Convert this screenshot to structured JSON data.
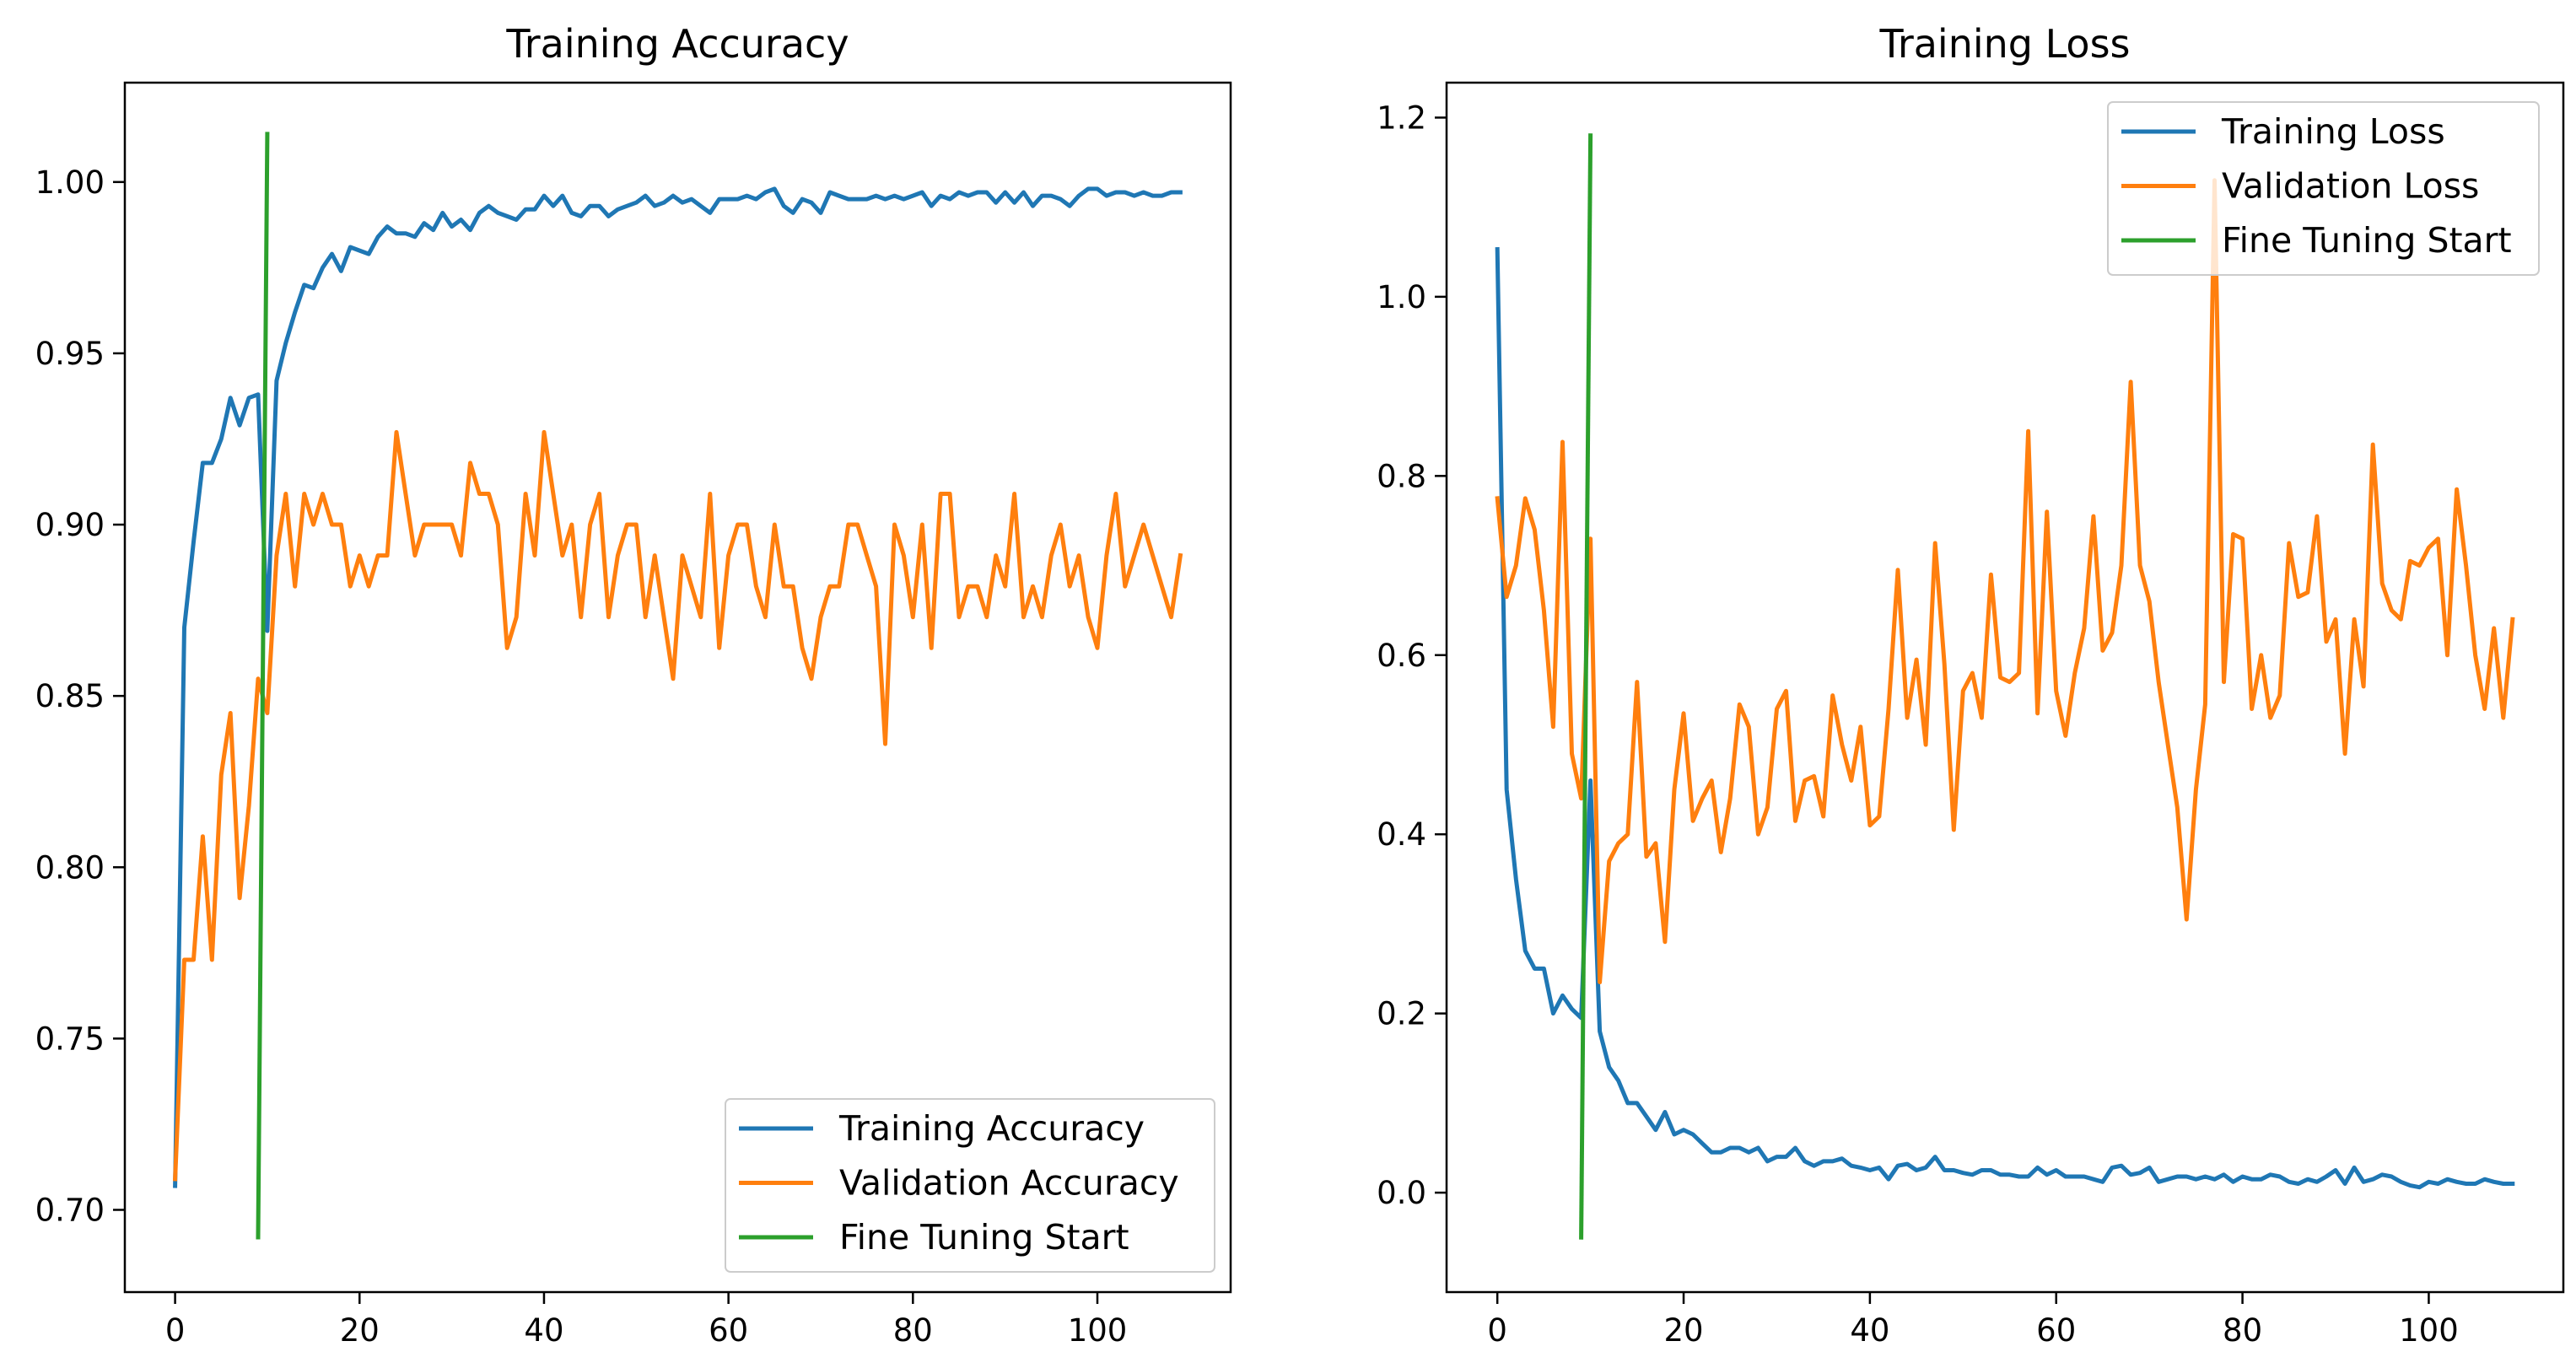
{
  "colors": {
    "training": "#1f77b4",
    "validation": "#ff7f0e",
    "fine_tuning": "#2ca02c"
  },
  "chart_data": [
    {
      "type": "line",
      "title": "Training Accuracy",
      "xlabel": "",
      "ylabel": "",
      "xlim": [
        -5.45,
        114.45
      ],
      "ylim": [
        0.676,
        1.029
      ],
      "xticks": [
        0,
        20,
        40,
        60,
        80,
        100
      ],
      "xtick_labels": [
        "0",
        "20",
        "40",
        "60",
        "80",
        "100"
      ],
      "yticks": [
        0.7,
        0.75,
        0.8,
        0.85,
        0.9,
        0.95,
        1.0
      ],
      "ytick_labels": [
        "0.70",
        "0.75",
        "0.80",
        "0.85",
        "0.90",
        "0.95",
        "1.00"
      ],
      "legend_position": "lower-right",
      "grid": false,
      "series": [
        {
          "name": "Training Accuracy",
          "color_key": "training",
          "values": [
            0.707,
            0.87,
            0.895,
            0.918,
            0.918,
            0.925,
            0.937,
            0.929,
            0.937,
            0.938,
            0.869,
            0.942,
            0.953,
            0.962,
            0.97,
            0.969,
            0.975,
            0.979,
            0.974,
            0.981,
            0.98,
            0.979,
            0.984,
            0.987,
            0.985,
            0.985,
            0.984,
            0.988,
            0.986,
            0.991,
            0.987,
            0.989,
            0.986,
            0.991,
            0.993,
            0.991,
            0.99,
            0.989,
            0.992,
            0.992,
            0.996,
            0.993,
            0.996,
            0.991,
            0.99,
            0.993,
            0.993,
            0.99,
            0.992,
            0.993,
            0.994,
            0.996,
            0.993,
            0.994,
            0.996,
            0.994,
            0.995,
            0.993,
            0.991,
            0.995,
            0.995,
            0.995,
            0.996,
            0.995,
            0.997,
            0.998,
            0.993,
            0.991,
            0.995,
            0.994,
            0.991,
            0.997,
            0.996,
            0.995,
            0.995,
            0.995,
            0.996,
            0.995,
            0.996,
            0.995,
            0.996,
            0.997,
            0.993,
            0.996,
            0.995,
            0.997,
            0.996,
            0.997,
            0.997,
            0.994,
            0.997,
            0.994,
            0.997,
            0.993,
            0.996,
            0.996,
            0.995,
            0.993,
            0.996,
            0.998,
            0.998,
            0.996,
            0.997,
            0.997,
            0.996,
            0.997,
            0.996,
            0.996,
            0.997,
            0.997
          ]
        },
        {
          "name": "Validation Accuracy",
          "color_key": "validation",
          "values": [
            0.709,
            0.773,
            0.773,
            0.809,
            0.773,
            0.827,
            0.845,
            0.791,
            0.818,
            0.855,
            0.845,
            0.891,
            0.909,
            0.882,
            0.909,
            0.9,
            0.909,
            0.9,
            0.9,
            0.882,
            0.891,
            0.882,
            0.891,
            0.891,
            0.927,
            0.909,
            0.891,
            0.9,
            0.9,
            0.9,
            0.9,
            0.891,
            0.918,
            0.909,
            0.909,
            0.9,
            0.864,
            0.873,
            0.909,
            0.891,
            0.927,
            0.909,
            0.891,
            0.9,
            0.873,
            0.9,
            0.909,
            0.873,
            0.891,
            0.9,
            0.9,
            0.873,
            0.891,
            0.873,
            0.855,
            0.891,
            0.882,
            0.873,
            0.909,
            0.864,
            0.891,
            0.9,
            0.9,
            0.882,
            0.873,
            0.9,
            0.882,
            0.882,
            0.864,
            0.855,
            0.873,
            0.882,
            0.882,
            0.9,
            0.9,
            0.891,
            0.882,
            0.836,
            0.9,
            0.891,
            0.873,
            0.9,
            0.864,
            0.909,
            0.909,
            0.873,
            0.882,
            0.882,
            0.873,
            0.891,
            0.882,
            0.909,
            0.873,
            0.882,
            0.873,
            0.891,
            0.9,
            0.882,
            0.891,
            0.873,
            0.864,
            0.891,
            0.909,
            0.882,
            0.891,
            0.9,
            0.891,
            0.882,
            0.873,
            0.891
          ]
        },
        {
          "name": "Fine Tuning Start",
          "color_key": "fine_tuning",
          "x": [
            9,
            10
          ],
          "values": [
            0.692,
            1.014
          ]
        }
      ]
    },
    {
      "type": "line",
      "title": "Training Loss",
      "xlabel": "",
      "ylabel": "",
      "xlim": [
        -5.45,
        114.45
      ],
      "ylim": [
        -0.111,
        1.239
      ],
      "xticks": [
        0,
        20,
        40,
        60,
        80,
        100
      ],
      "xtick_labels": [
        "0",
        "20",
        "40",
        "60",
        "80",
        "100"
      ],
      "yticks": [
        0.0,
        0.2,
        0.4,
        0.6,
        0.8,
        1.0,
        1.2
      ],
      "ytick_labels": [
        "0.0",
        "0.2",
        "0.4",
        "0.6",
        "0.8",
        "1.0",
        "1.2"
      ],
      "legend_position": "upper-right",
      "grid": false,
      "series": [
        {
          "name": "Training Loss",
          "color_key": "training",
          "values": [
            1.053,
            0.45,
            0.35,
            0.27,
            0.25,
            0.25,
            0.2,
            0.22,
            0.205,
            0.195,
            0.46,
            0.18,
            0.14,
            0.125,
            0.1,
            0.1,
            0.085,
            0.07,
            0.09,
            0.065,
            0.07,
            0.065,
            0.055,
            0.045,
            0.045,
            0.05,
            0.05,
            0.045,
            0.05,
            0.035,
            0.04,
            0.04,
            0.05,
            0.035,
            0.03,
            0.035,
            0.035,
            0.038,
            0.03,
            0.028,
            0.025,
            0.028,
            0.015,
            0.03,
            0.032,
            0.025,
            0.028,
            0.04,
            0.025,
            0.025,
            0.022,
            0.02,
            0.025,
            0.025,
            0.02,
            0.02,
            0.018,
            0.018,
            0.028,
            0.02,
            0.025,
            0.018,
            0.018,
            0.018,
            0.015,
            0.012,
            0.028,
            0.03,
            0.02,
            0.022,
            0.028,
            0.012,
            0.015,
            0.018,
            0.018,
            0.015,
            0.018,
            0.015,
            0.02,
            0.012,
            0.018,
            0.015,
            0.015,
            0.02,
            0.018,
            0.012,
            0.01,
            0.015,
            0.012,
            0.018,
            0.025,
            0.01,
            0.028,
            0.012,
            0.015,
            0.02,
            0.018,
            0.012,
            0.008,
            0.006,
            0.012,
            0.01,
            0.015,
            0.012,
            0.01,
            0.01,
            0.015,
            0.012,
            0.01,
            0.01
          ]
        },
        {
          "name": "Validation Loss",
          "color_key": "validation",
          "values": [
            0.775,
            0.665,
            0.7,
            0.775,
            0.74,
            0.65,
            0.52,
            0.838,
            0.49,
            0.44,
            0.73,
            0.235,
            0.37,
            0.39,
            0.4,
            0.57,
            0.375,
            0.39,
            0.28,
            0.45,
            0.535,
            0.415,
            0.44,
            0.46,
            0.38,
            0.44,
            0.545,
            0.52,
            0.4,
            0.43,
            0.54,
            0.56,
            0.415,
            0.46,
            0.465,
            0.42,
            0.555,
            0.5,
            0.46,
            0.52,
            0.41,
            0.42,
            0.54,
            0.695,
            0.53,
            0.595,
            0.5,
            0.725,
            0.59,
            0.405,
            0.56,
            0.58,
            0.53,
            0.69,
            0.575,
            0.57,
            0.58,
            0.85,
            0.535,
            0.76,
            0.56,
            0.51,
            0.58,
            0.63,
            0.755,
            0.605,
            0.625,
            0.7,
            0.905,
            0.7,
            0.66,
            0.57,
            0.5,
            0.43,
            0.305,
            0.45,
            0.545,
            1.13,
            0.57,
            0.735,
            0.73,
            0.54,
            0.6,
            0.53,
            0.555,
            0.725,
            0.665,
            0.67,
            0.755,
            0.615,
            0.64,
            0.49,
            0.64,
            0.565,
            0.835,
            0.68,
            0.65,
            0.64,
            0.705,
            0.7,
            0.72,
            0.73,
            0.6,
            0.785,
            0.7,
            0.6,
            0.54,
            0.63,
            0.53,
            0.64
          ]
        },
        {
          "name": "Fine Tuning Start",
          "color_key": "fine_tuning",
          "x": [
            9,
            10
          ],
          "values": [
            -0.05,
            1.18
          ]
        }
      ]
    }
  ]
}
